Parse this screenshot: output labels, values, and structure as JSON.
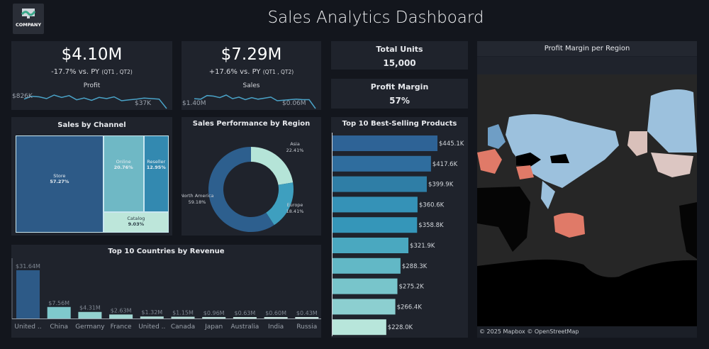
{
  "header": {
    "logo_text": "COMPANY",
    "title": "Sales Analytics Dashboard"
  },
  "kpis": [
    {
      "value": "$4.10M",
      "change": "-17.7% vs. PY",
      "period": "(QT1 , QT2)",
      "label": "Profit",
      "spark_start": "$826K",
      "spark_end": "$37K"
    },
    {
      "value": "$7.29M",
      "change": "+17.6% vs. PY",
      "period": "(QT1 , QT2)",
      "label": "Sales",
      "spark_start": "$1.40M",
      "spark_end": "$0.06M"
    }
  ],
  "stats": [
    {
      "label": "Total Units",
      "value": "15,000"
    },
    {
      "label": "Profit Margin",
      "value": "57%"
    }
  ],
  "map": {
    "title": "Profit Margin per Region",
    "attribution": "© 2025 Mapbox © OpenStreetMap"
  },
  "colors": {
    "bg": "#13161d",
    "panel": "#1f232c",
    "spark": "#4aa3c8",
    "positive": "#9ec5e0",
    "negative": "#e07a68"
  },
  "chart_data": [
    {
      "type": "line",
      "title": "Profit",
      "values": [
        826,
        850,
        845,
        830,
        860,
        840,
        855,
        820,
        835,
        815,
        840,
        830,
        845,
        812,
        820,
        825,
        835,
        830,
        826,
        37
      ]
    },
    {
      "type": "line",
      "title": "Sales",
      "values": [
        1.4,
        1.39,
        1.46,
        1.45,
        1.42,
        1.47,
        1.4,
        1.43,
        1.38,
        1.42,
        1.39,
        1.41,
        1.43,
        1.36,
        1.37,
        1.38,
        1.39,
        1.38,
        1.38,
        0.06
      ]
    },
    {
      "type": "treemap",
      "title": "Sales by Channel",
      "categories": [
        "Store",
        "Online",
        "Reseller",
        "Catalog"
      ],
      "labels": [
        "57.27%",
        "20.76%",
        "12.95%",
        "9.03%"
      ],
      "values": [
        57.27,
        20.76,
        12.95,
        9.03
      ],
      "colors": [
        "#2d5a87",
        "#6fb8c5",
        "#3389b0",
        "#bde6da"
      ]
    },
    {
      "type": "pie",
      "title": "Sales Performance by Region",
      "categories": [
        "Asia",
        "Europe",
        "North America"
      ],
      "labels": [
        "22.41%",
        "18.41%",
        "59.18%"
      ],
      "values": [
        22.41,
        18.41,
        59.18
      ],
      "colors": [
        "#b5e4d8",
        "#3e9fbf",
        "#2d5f8e"
      ]
    },
    {
      "type": "bar",
      "title": "Top 10 Countries by Revenue",
      "categories": [
        "United ..",
        "China",
        "Germany",
        "France",
        "United ..",
        "Canada",
        "Japan",
        "Australia",
        "India",
        "Russia"
      ],
      "labels": [
        "$31.64M",
        "$7.56M",
        "$4.31M",
        "$2.63M",
        "$1.32M",
        "$1.15M",
        "$0.96M",
        "$0.63M",
        "$0.60M",
        "$0.43M"
      ],
      "values": [
        31.64,
        7.56,
        4.31,
        2.63,
        1.32,
        1.15,
        0.96,
        0.63,
        0.6,
        0.43
      ]
    },
    {
      "type": "bar",
      "orientation": "horizontal",
      "title": "Top 10 Best-Selling Products",
      "labels": [
        "$445.1K",
        "$417.6K",
        "$399.9K",
        "$360.6K",
        "$358.8K",
        "$321.9K",
        "$288.3K",
        "$275.2K",
        "$266.4K",
        "$228.0K"
      ],
      "values": [
        445.1,
        417.6,
        399.9,
        360.6,
        358.8,
        321.9,
        288.3,
        275.2,
        266.4,
        228.0
      ]
    }
  ]
}
